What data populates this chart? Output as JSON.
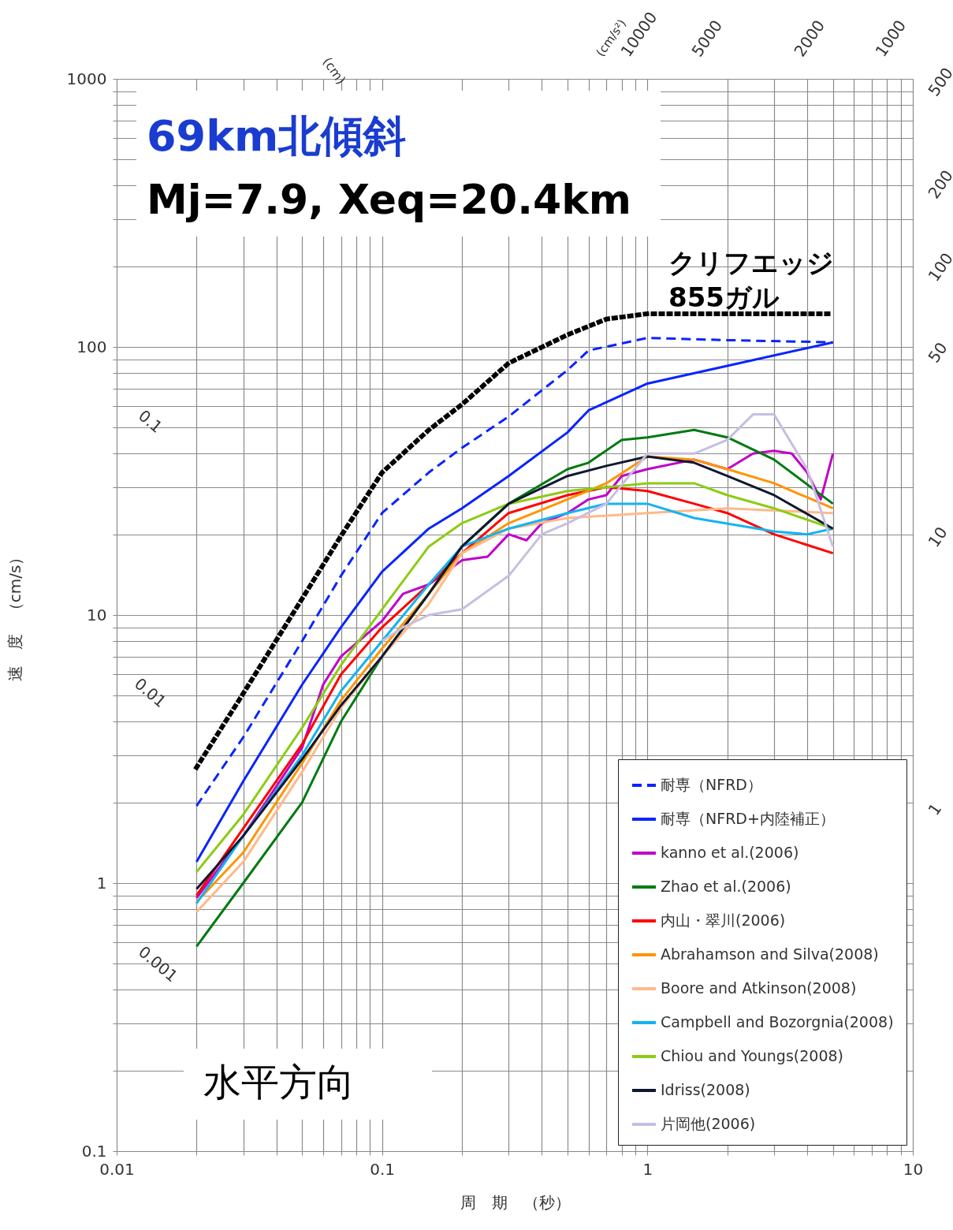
{
  "chart_data": {
    "type": "line",
    "title": "69km北傾斜",
    "subtitle": "Mj=7.9, Xeq=20.4km",
    "xlabel": "周　期　（秒）",
    "ylabel": "速　度　（cm/s）",
    "log": "xy",
    "grid": true,
    "legend": "bottom right",
    "xlim": [
      0.01,
      10
    ],
    "ylim": [
      0.1,
      1000
    ],
    "xticks": [
      0.01,
      {
        "value": 0.02,
        "label": null
      },
      {
        "value": 0.03,
        "label": null
      },
      {
        "value": 0.04,
        "label": null
      },
      {
        "value": 0.05,
        "label": null
      },
      {
        "value": 0.06,
        "label": null
      },
      {
        "value": 0.07,
        "label": null
      },
      {
        "value": 0.08,
        "label": null
      },
      {
        "value": 0.09,
        "label": null
      },
      0.1,
      {
        "value": 0.2,
        "label": null
      },
      {
        "value": 0.3,
        "label": null
      },
      {
        "value": 0.4,
        "label": null
      },
      {
        "value": 0.5,
        "label": null
      },
      {
        "value": 0.6,
        "label": null
      },
      {
        "value": 0.7,
        "label": null
      },
      {
        "value": 0.8,
        "label": null
      },
      {
        "value": 0.9,
        "label": null
      },
      1,
      {
        "value": 2,
        "label": null
      },
      {
        "value": 3,
        "label": null
      },
      {
        "value": 4,
        "label": null
      },
      {
        "value": 5,
        "label": null
      },
      {
        "value": 6,
        "label": null
      },
      {
        "value": 7,
        "label": null
      },
      {
        "value": 8,
        "label": null
      },
      {
        "value": 9,
        "label": null
      },
      10
    ],
    "yticks": [
      0.1,
      {
        "value": 0.2,
        "label": null
      },
      {
        "value": 0.3,
        "label": null
      },
      {
        "value": 0.4,
        "label": null
      },
      {
        "value": 0.5,
        "label": null
      },
      {
        "value": 0.6,
        "label": null
      },
      {
        "value": 0.7,
        "label": null
      },
      {
        "value": 0.8,
        "label": null
      },
      {
        "value": 0.9,
        "label": null
      },
      1,
      {
        "value": 2,
        "label": null
      },
      {
        "value": 3,
        "label": null
      },
      {
        "value": 4,
        "label": null
      },
      {
        "value": 5,
        "label": null
      },
      {
        "value": 6,
        "label": null
      },
      {
        "value": 7,
        "label": null
      },
      {
        "value": 8,
        "label": null
      },
      {
        "value": 9,
        "label": null
      },
      10,
      {
        "value": 20,
        "label": null
      },
      {
        "value": 30,
        "label": null
      },
      {
        "value": 40,
        "label": null
      },
      {
        "value": 50,
        "label": null
      },
      {
        "value": 60,
        "label": null
      },
      {
        "value": 70,
        "label": null
      },
      {
        "value": 80,
        "label": null
      },
      {
        "value": 90,
        "label": null
      },
      100,
      {
        "value": 200,
        "label": null
      },
      {
        "value": 300,
        "label": null
      },
      {
        "value": 400,
        "label": null
      },
      {
        "value": 500,
        "label": null
      },
      {
        "value": 600,
        "label": null
      },
      {
        "value": 700,
        "label": null
      },
      {
        "value": 800,
        "label": null
      },
      {
        "value": 900,
        "label": null
      },
      1000
    ],
    "annotations": [
      "クリフエッジ\n855ガル",
      "水平方向",
      "(cm)",
      "0.1",
      "0.01",
      "0.001",
      "(cm/s²)",
      "10000",
      "5000",
      "2000",
      "1000",
      "500",
      "200",
      "100",
      "50",
      "10",
      "1"
    ],
    "series": [
      {
        "color": "#000000",
        "line_style": "dotted",
        "x": [
          0.02,
          0.03,
          0.05,
          0.07,
          0.1,
          0.15,
          0.2,
          0.3,
          0.5,
          0.7,
          1,
          2,
          5
        ],
        "values": [
          2.7,
          5.1,
          11.5,
          19.7,
          34,
          49,
          61,
          87,
          111,
          127,
          133,
          133,
          133
        ]
      },
      {
        "name": "耐専（NFRD）",
        "color": "#0a24ff",
        "line_style": "dashed",
        "x": [
          0.02,
          0.03,
          0.05,
          0.07,
          0.1,
          0.15,
          0.2,
          0.3,
          0.5,
          0.6,
          1,
          2,
          5
        ],
        "values": [
          1.94,
          3.5,
          8,
          14,
          24,
          34,
          42,
          55,
          82,
          97,
          108,
          106,
          104
        ]
      },
      {
        "name": "耐専（NFRD+内陸補正）",
        "color": "#0a24ff",
        "line_style": "solid",
        "x": [
          0.02,
          0.03,
          0.05,
          0.07,
          0.1,
          0.15,
          0.2,
          0.3,
          0.5,
          0.6,
          1,
          2,
          5
        ],
        "values": [
          1.2,
          2.4,
          5.5,
          9,
          14.5,
          21,
          25,
          33,
          48,
          58,
          73,
          85,
          104
        ]
      },
      {
        "name": "kanno et al.(2006)",
        "color": "#c000c8",
        "line_style": "solid",
        "x": [
          0.02,
          0.03,
          0.05,
          0.06,
          0.07,
          0.1,
          0.12,
          0.15,
          0.2,
          0.25,
          0.3,
          0.35,
          0.4,
          0.5,
          0.6,
          0.7,
          0.8,
          1,
          1.5,
          2,
          2.5,
          3,
          3.5,
          4,
          4.5,
          5
        ],
        "values": [
          0.88,
          1.5,
          3.2,
          5.5,
          7,
          9.5,
          12,
          13,
          16,
          16.5,
          20,
          19,
          22,
          24,
          27,
          28,
          33,
          35,
          38,
          35,
          40,
          41,
          40,
          34,
          27,
          40
        ]
      },
      {
        "name": "Zhao et al.(2006)",
        "color": "#007a10",
        "line_style": "solid",
        "x": [
          0.02,
          0.03,
          0.05,
          0.07,
          0.1,
          0.15,
          0.2,
          0.3,
          0.5,
          0.6,
          0.8,
          1,
          1.5,
          2,
          3,
          5
        ],
        "values": [
          0.58,
          1.0,
          2.0,
          4,
          7,
          12,
          18,
          26,
          35,
          37,
          45,
          46,
          49,
          46,
          38,
          26
        ]
      },
      {
        "name": "内山・翠川(2006)",
        "color": "#ff0000",
        "line_style": "solid",
        "x": [
          0.02,
          0.03,
          0.05,
          0.07,
          0.1,
          0.15,
          0.2,
          0.3,
          0.5,
          0.7,
          1,
          1.5,
          2,
          3,
          5
        ],
        "values": [
          0.9,
          1.6,
          3.3,
          6,
          9,
          13,
          17,
          24,
          28,
          30,
          29,
          26,
          24,
          20,
          17
        ]
      },
      {
        "name": "Abrahamson and Silva(2008)",
        "color": "#ff9400",
        "line_style": "solid",
        "x": [
          0.02,
          0.03,
          0.05,
          0.07,
          0.1,
          0.15,
          0.2,
          0.3,
          0.5,
          0.7,
          1,
          1.5,
          2,
          3,
          5
        ],
        "values": [
          0.85,
          1.3,
          2.8,
          4.8,
          7.5,
          12,
          17,
          22,
          27,
          31,
          39,
          38,
          35,
          31,
          25
        ]
      },
      {
        "name": "Boore and Atkinson(2008)",
        "color": "#ffb98a",
        "line_style": "solid",
        "x": [
          0.02,
          0.03,
          0.05,
          0.07,
          0.1,
          0.15,
          0.2,
          0.3,
          0.5,
          1,
          2,
          5
        ],
        "values": [
          0.78,
          1.2,
          2.6,
          4.5,
          7,
          11,
          17,
          21,
          23,
          24,
          25,
          24
        ]
      },
      {
        "name": "Campbell and Bozorgnia(2008)",
        "color": "#12b4f0",
        "line_style": "solid",
        "x": [
          0.02,
          0.03,
          0.05,
          0.07,
          0.1,
          0.15,
          0.2,
          0.3,
          0.5,
          0.7,
          1,
          1.5,
          3,
          4,
          5
        ],
        "values": [
          0.84,
          1.5,
          3.0,
          5.2,
          8,
          13,
          18,
          21,
          24,
          26,
          26,
          23,
          20.5,
          20,
          21
        ]
      },
      {
        "name": "Chiou and Youngs(2008)",
        "color": "#8ccc14",
        "line_style": "solid",
        "x": [
          0.02,
          0.03,
          0.05,
          0.07,
          0.1,
          0.15,
          0.2,
          0.3,
          0.5,
          1,
          1.5,
          2,
          3,
          5
        ],
        "values": [
          1.1,
          1.8,
          3.8,
          6.5,
          10.5,
          18,
          22,
          26,
          29,
          31,
          31,
          28,
          25,
          21
        ]
      },
      {
        "name": "Idriss(2008)",
        "color": "#101830",
        "line_style": "solid",
        "x": [
          0.02,
          0.03,
          0.05,
          0.07,
          0.1,
          0.15,
          0.2,
          0.3,
          0.5,
          0.7,
          1,
          1.5,
          2,
          3,
          5
        ],
        "values": [
          0.95,
          1.5,
          2.9,
          4.6,
          7,
          12,
          18,
          26,
          33,
          36,
          39,
          37,
          33,
          28,
          21
        ]
      },
      {
        "name": "片岡他(2006)",
        "color": "#c8bee0",
        "line_style": "solid",
        "x": [
          0.1,
          0.12,
          0.15,
          0.2,
          0.3,
          0.4,
          0.5,
          0.7,
          1,
          1.5,
          2,
          2.5,
          3,
          4,
          5
        ],
        "values": [
          8,
          9,
          10,
          10.5,
          14,
          20,
          22,
          26,
          40,
          40,
          45,
          56,
          56,
          35,
          18
        ]
      }
    ]
  }
}
